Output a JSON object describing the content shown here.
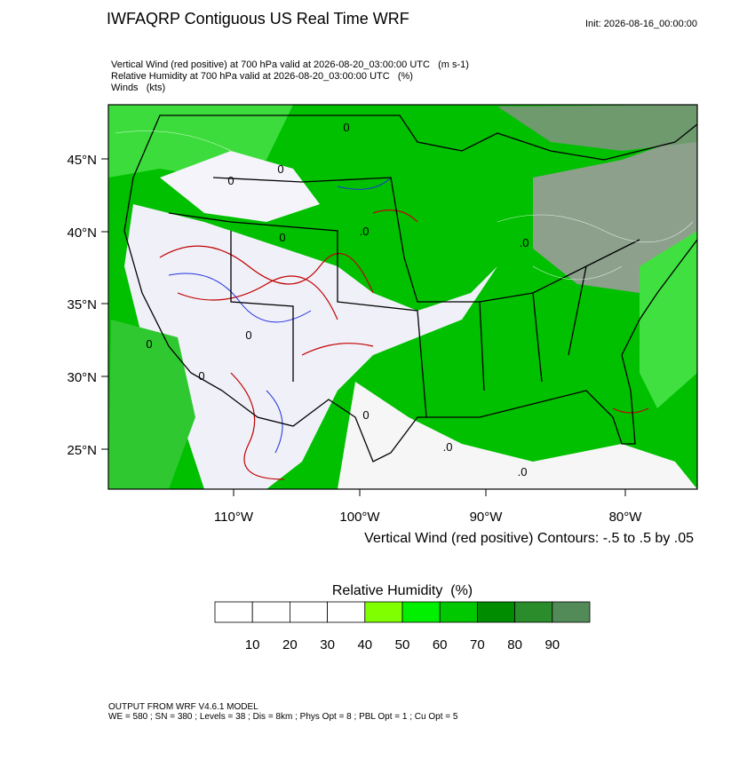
{
  "header": {
    "title": "IWFAQRP Contiguous US Real Time WRF",
    "init": "Init: 2026-08-16_00:00:00",
    "subtitles": [
      "Vertical Wind (red positive) at 700 hPa valid at 2026-08-20_03:00:00 UTC   (m s-1)",
      "Relative Humidity at 700 hPa valid at 2026-08-20_03:00:00 UTC   (%)",
      "Winds   (kts)"
    ]
  },
  "map": {
    "lat_labels": [
      "45°N",
      "40°N",
      "35°N",
      "30°N",
      "25°N"
    ],
    "lon_labels": [
      "110°W",
      "100°W",
      "90°W",
      "80°W"
    ],
    "contour_labels": [
      "0",
      "0",
      "0",
      ".0",
      "0",
      "0",
      "0",
      ".0",
      ".0",
      "0",
      "0",
      ".0"
    ],
    "contour_info": "Vertical Wind (red positive) Contours: -.5 to .5 by .05"
  },
  "colorbar": {
    "title": "Relative Humidity  (%)",
    "labels": [
      "10",
      "20",
      "30",
      "40",
      "50",
      "60",
      "70",
      "80",
      "90"
    ],
    "colors": [
      "#ffffff",
      "#ffffff",
      "#ffffff",
      "#ffffff",
      "#80ff00",
      "#00f000",
      "#00c800",
      "#008c00",
      "#2a8c2a",
      "#528a58"
    ]
  },
  "footer": [
    "OUTPUT FROM WRF V4.6.1 MODEL",
    "WE = 580 ; SN = 380 ; Levels = 38 ; Dis = 8km ; Phys Opt = 8 ; PBL Opt = 1 ; Cu Opt = 5"
  ]
}
